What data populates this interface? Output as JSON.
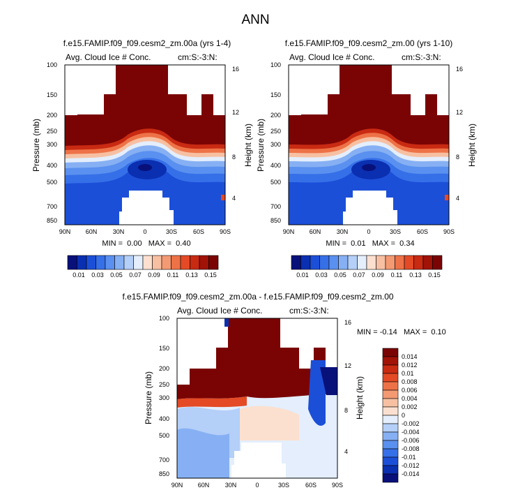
{
  "page_title": "ANN",
  "colors": {
    "seq": [
      "#08107a",
      "#0a2fb0",
      "#1c4fd8",
      "#3670e8",
      "#5a90ef",
      "#86b0f3",
      "#b4cff8",
      "#e4eefc",
      "#fbe0cf",
      "#f7c0a2",
      "#f39a73",
      "#ee7247",
      "#e34a25",
      "#c92a12",
      "#a11207",
      "#7a0404"
    ],
    "div": [
      "#08107a",
      "#0a2fb0",
      "#1c4fd8",
      "#3670e8",
      "#5a90ef",
      "#86b0f3",
      "#b4cff8",
      "#e4eefc",
      "#fbe0cf",
      "#f7c0a2",
      "#f39a73",
      "#ee7247",
      "#e34a25",
      "#c92a12",
      "#a11207",
      "#7a0404"
    ]
  },
  "chart_data": [
    {
      "type": "heatmap",
      "title": "f.e15.FAMIP.f09_f09.cesm2_zm.00a (yrs 1-4)",
      "subtitle_left": "Avg. Cloud Ice # Conc.",
      "subtitle_right": "cm:S:-3:N:",
      "ylabel": "Pressure (mb)",
      "ylabel_right": "Height (km)",
      "xticks": [
        "90N",
        "60N",
        "30N",
        "0",
        "30S",
        "60S",
        "90S"
      ],
      "yticks": [
        "100",
        "150",
        "200",
        "250",
        "300",
        "400",
        "500",
        "700",
        "850"
      ],
      "yticks_right": [
        "16",
        "12",
        "8",
        "4"
      ],
      "stats": "MIN =  0.00   MAX =  0.40",
      "ylim": [
        900,
        100
      ],
      "xlim": [
        90,
        -90
      ],
      "colorbar_labels": [
        "0.01",
        "0.03",
        "0.05",
        "0.07",
        "0.09",
        "0.11",
        "0.13",
        "0.15"
      ]
    },
    {
      "type": "heatmap",
      "title": "f.e15.FAMIP.f09_f09.cesm2_zm.00 (yrs 1-10)",
      "subtitle_left": "Avg. Cloud Ice # Conc.",
      "subtitle_right": "cm:S:-3:N:",
      "ylabel": "Pressure (mb)",
      "ylabel_right": "Height (km)",
      "xticks": [
        "90N",
        "60N",
        "30N",
        "0",
        "30S",
        "60S",
        "90S"
      ],
      "yticks": [
        "100",
        "150",
        "200",
        "250",
        "300",
        "400",
        "500",
        "700",
        "850"
      ],
      "yticks_right": [
        "16",
        "12",
        "8",
        "4"
      ],
      "stats": "MIN =  0.01   MAX =  0.34",
      "ylim": [
        900,
        100
      ],
      "xlim": [
        90,
        -90
      ],
      "colorbar_labels": [
        "0.01",
        "0.03",
        "0.05",
        "0.07",
        "0.09",
        "0.11",
        "0.13",
        "0.15"
      ]
    },
    {
      "type": "heatmap",
      "title": "f.e15.FAMIP.f09_f09.cesm2_zm.00a - f.e15.FAMIP.f09_f09.cesm2_zm.00",
      "subtitle_left": "Avg. Cloud Ice # Conc.",
      "subtitle_right": "cm:S:-3:N:",
      "ylabel": "Pressure (mb)",
      "ylabel_right": "Height (km)",
      "xticks": [
        "90N",
        "60N",
        "30N",
        "0",
        "30S",
        "60S",
        "90S"
      ],
      "yticks": [
        "100",
        "150",
        "200",
        "250",
        "300",
        "400",
        "500",
        "700",
        "850"
      ],
      "yticks_right": [
        "16",
        "12",
        "8",
        "4"
      ],
      "stats": "MIN = -0.14   MAX =  0.10",
      "ylim": [
        900,
        100
      ],
      "xlim": [
        90,
        -90
      ],
      "colorbar_labels": [
        "0.014",
        "0.012",
        "0.01",
        "0.008",
        "0.006",
        "0.004",
        "0.002",
        "0",
        "-0.002",
        "-0.004",
        "-0.006",
        "-0.008",
        "-0.01",
        "-0.012",
        "-0.014"
      ]
    }
  ]
}
